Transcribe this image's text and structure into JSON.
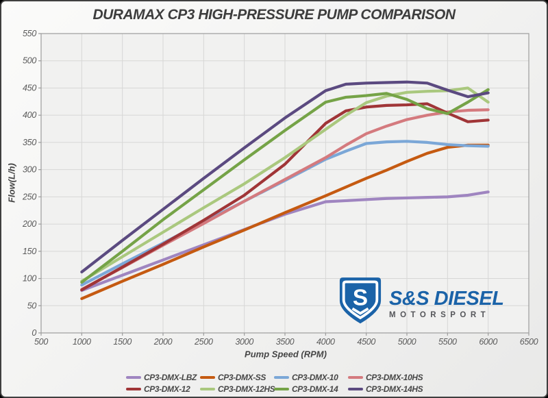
{
  "title": "DURAMAX CP3 HIGH-PRESSURE PUMP COMPARISON",
  "axes": {
    "x_label": "Pump Speed (RPM)",
    "y_label": "Flow(L/h)"
  },
  "logo": {
    "line1": "S&S DIESEL",
    "line2": "MOTORSPORT",
    "badge_letter": "S",
    "blue": "#1b63a8",
    "gray": "#55565a"
  },
  "colors": {
    "plot_background": "#f1f1f0",
    "gridline": "#d7d7d6",
    "plot_border": "#9c9c9c",
    "title_text": "#3d3d3d",
    "tick_text": "#5a5a5a"
  },
  "chart_data": {
    "type": "line",
    "title": "DURAMAX CP3 HIGH-PRESSURE PUMP COMPARISON",
    "xlabel": "Pump Speed (RPM)",
    "ylabel": "Flow(L/h)",
    "xlim": [
      500,
      6500
    ],
    "ylim": [
      0,
      550
    ],
    "x_tick_step": 500,
    "y_tick_step": 50,
    "grid": true,
    "legend_position": "bottom",
    "x": [
      1000,
      1500,
      2000,
      2500,
      3000,
      3500,
      4000,
      4250,
      4500,
      4750,
      5000,
      5250,
      5500,
      5750,
      6000
    ],
    "series": [
      {
        "name": "CP3-DMX-LBZ",
        "color": "#9f85c0",
        "values": [
          78,
          106,
          134,
          162,
          190,
          218,
          241,
          243,
          245,
          247,
          248,
          249,
          250,
          253,
          259
        ]
      },
      {
        "name": "CP3-DMX-SS",
        "color": "#c55a11",
        "values": [
          63,
          95,
          126,
          158,
          189,
          221,
          252,
          268,
          284,
          299,
          315,
          330,
          341,
          345,
          345
        ]
      },
      {
        "name": "CP3-DMX-10",
        "color": "#7ba7d7",
        "values": [
          88,
          127,
          165,
          204,
          242,
          280,
          319,
          334,
          348,
          351,
          352,
          350,
          346,
          344,
          343
        ]
      },
      {
        "name": "CP3-DMX-10HS",
        "color": "#d47a7e",
        "values": [
          80,
          120,
          161,
          201,
          242,
          282,
          322,
          345,
          366,
          380,
          392,
          400,
          406,
          409,
          410
        ]
      },
      {
        "name": "CP3-DMX-12",
        "color": "#a03537",
        "values": [
          79,
          121,
          163,
          207,
          253,
          310,
          385,
          408,
          415,
          418,
          419,
          421,
          404,
          388,
          391
        ]
      },
      {
        "name": "CP3-DMX-12HS",
        "color": "#aac87e",
        "values": [
          95,
          140,
          185,
          230,
          274,
          322,
          374,
          400,
          423,
          435,
          442,
          444,
          445,
          450,
          424
        ]
      },
      {
        "name": "CP3-DMX-14",
        "color": "#75a347",
        "values": [
          93,
          150,
          208,
          263,
          318,
          372,
          424,
          433,
          436,
          440,
          429,
          412,
          403,
          424,
          447
        ]
      },
      {
        "name": "CP3-DMX-14HS",
        "color": "#5b4a80",
        "values": [
          112,
          170,
          227,
          284,
          340,
          395,
          445,
          457,
          459,
          460,
          461,
          459,
          446,
          434,
          441
        ]
      }
    ]
  }
}
